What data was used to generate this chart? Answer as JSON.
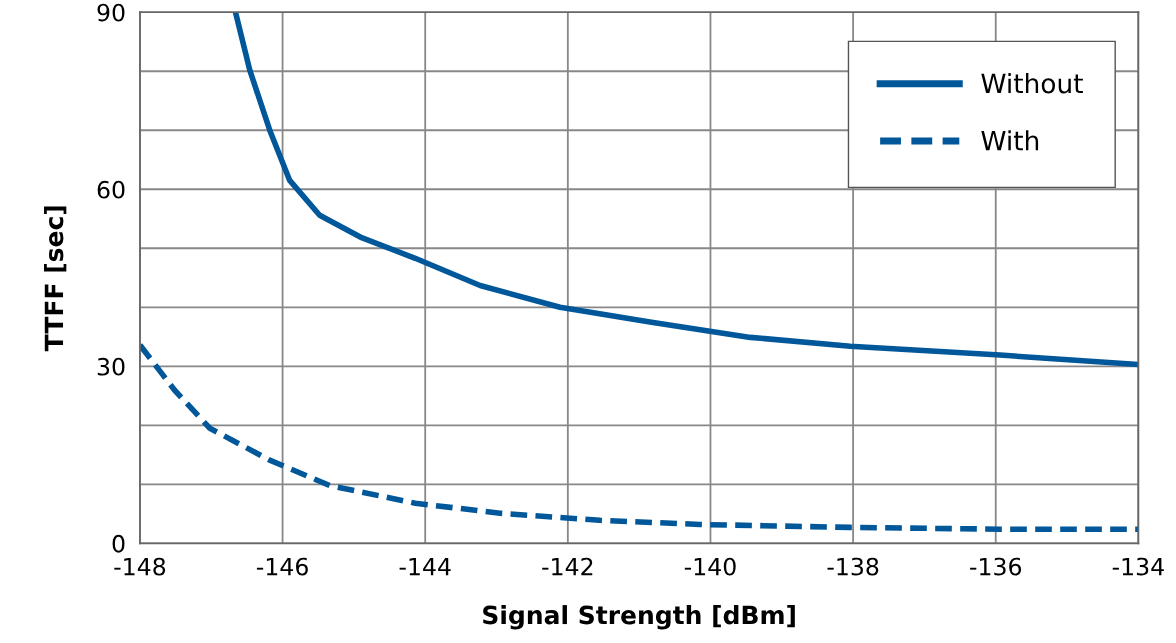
{
  "chart_data": {
    "type": "line",
    "xlabel": "Signal Strength [dBm]",
    "ylabel": "TTFF [sec]",
    "xlim": [
      -148,
      -134
    ],
    "xticks": [
      -148,
      -146,
      -144,
      -142,
      -140,
      -138,
      -136,
      -134
    ],
    "ylim": [
      0,
      90
    ],
    "yticks": [
      0,
      {
        "value": 10,
        "label": null
      },
      {
        "value": 20,
        "label": null
      },
      30,
      {
        "value": 40,
        "label": null
      },
      {
        "value": 50,
        "label": null
      },
      60,
      {
        "value": 70,
        "label": null
      },
      {
        "value": 80,
        "label": null
      },
      90
    ],
    "grid": true,
    "legend": "top right",
    "series": [
      {
        "name": "Without",
        "color": "#00579a",
        "line_style": "solid",
        "x": [
          -146.66,
          -146.46,
          -146.18,
          -145.9,
          -145.48,
          -144.91,
          -144.14,
          -143.23,
          -142.11,
          -140.85,
          -139.44,
          -138.04,
          -135.94,
          -134
        ],
        "values": [
          90,
          80.2,
          70,
          61.5,
          55.6,
          51.9,
          48.3,
          43.7,
          40,
          37.5,
          34.9,
          33.4,
          31.9,
          30.3
        ]
      },
      {
        "name": "With",
        "color": "#00579a",
        "line_style": "dashed",
        "x": [
          -148,
          -147.51,
          -147.02,
          -146.18,
          -145.34,
          -144.14,
          -142.95,
          -141.55,
          -140.15,
          -138.04,
          -135.94,
          -134
        ],
        "values": [
          33.6,
          25.9,
          19.5,
          14.1,
          9.8,
          6.8,
          5.1,
          3.9,
          3.2,
          2.7,
          2.4,
          2.4
        ]
      }
    ]
  }
}
